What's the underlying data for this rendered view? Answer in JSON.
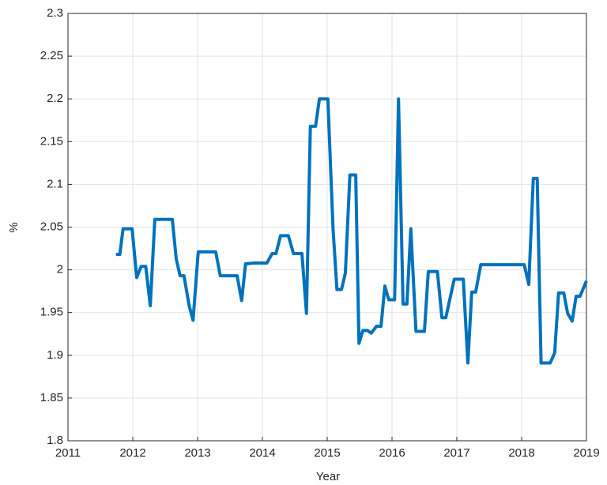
{
  "chart_data": {
    "type": "line",
    "x_label": "Year",
    "y_label": "%",
    "x": [
      2011.74,
      2011.8,
      2011.85,
      2011.99,
      2012.06,
      2012.13,
      2012.2,
      2012.27,
      2012.34,
      2012.61,
      2012.67,
      2012.73,
      2012.79,
      2012.87,
      2012.93,
      2013.01,
      2013.28,
      2013.35,
      2013.61,
      2013.68,
      2013.74,
      2013.88,
      2014.07,
      2014.15,
      2014.21,
      2014.28,
      2014.4,
      2014.48,
      2014.61,
      2014.68,
      2014.74,
      2014.82,
      2014.88,
      2015.01,
      2015.09,
      2015.15,
      2015.22,
      2015.28,
      2015.35,
      2015.44,
      2015.49,
      2015.55,
      2015.62,
      2015.68,
      2015.76,
      2015.83,
      2015.89,
      2015.95,
      2016.04,
      2016.1,
      2016.17,
      2016.23,
      2016.29,
      2016.37,
      2016.5,
      2016.56,
      2016.7,
      2016.77,
      2016.83,
      2016.96,
      2017.1,
      2017.17,
      2017.23,
      2017.29,
      2017.37,
      2018.04,
      2018.11,
      2018.18,
      2018.24,
      2018.3,
      2018.44,
      2018.51,
      2018.57,
      2018.65,
      2018.71,
      2018.78,
      2018.84,
      2018.9,
      2019.0
    ],
    "series": [
      {
        "color": "#0072bd",
        "values": [
          2.018,
          2.018,
          2.048,
          2.048,
          1.991,
          2.004,
          2.004,
          1.958,
          2.059,
          2.059,
          2.013,
          1.993,
          1.993,
          1.958,
          1.941,
          2.021,
          2.021,
          1.993,
          1.993,
          1.964,
          2.007,
          2.008,
          2.008,
          2.019,
          2.019,
          2.04,
          2.04,
          2.019,
          2.019,
          1.949,
          2.168,
          2.168,
          2.2,
          2.2,
          2.048,
          1.977,
          1.977,
          1.996,
          2.111,
          2.111,
          1.914,
          1.929,
          1.929,
          1.926,
          1.934,
          1.934,
          1.981,
          1.965,
          1.965,
          2.2,
          1.96,
          1.96,
          2.048,
          1.928,
          1.928,
          1.998,
          1.998,
          1.944,
          1.944,
          1.989,
          1.989,
          1.891,
          1.974,
          1.974,
          2.006,
          2.006,
          1.983,
          2.107,
          2.107,
          1.891,
          1.891,
          1.903,
          1.973,
          1.973,
          1.949,
          1.94,
          1.969,
          1.969,
          1.987
        ]
      }
    ],
    "xlim": [
      2011,
      2019
    ],
    "xticks": [
      2011,
      2012,
      2013,
      2014,
      2015,
      2016,
      2017,
      2018,
      2019
    ],
    "ylim": [
      1.8,
      2.3
    ],
    "yticks": [
      1.8,
      1.85,
      1.9,
      1.95,
      2,
      2.05,
      2.1,
      2.15,
      2.2,
      2.25,
      2.3
    ],
    "grid": true
  }
}
